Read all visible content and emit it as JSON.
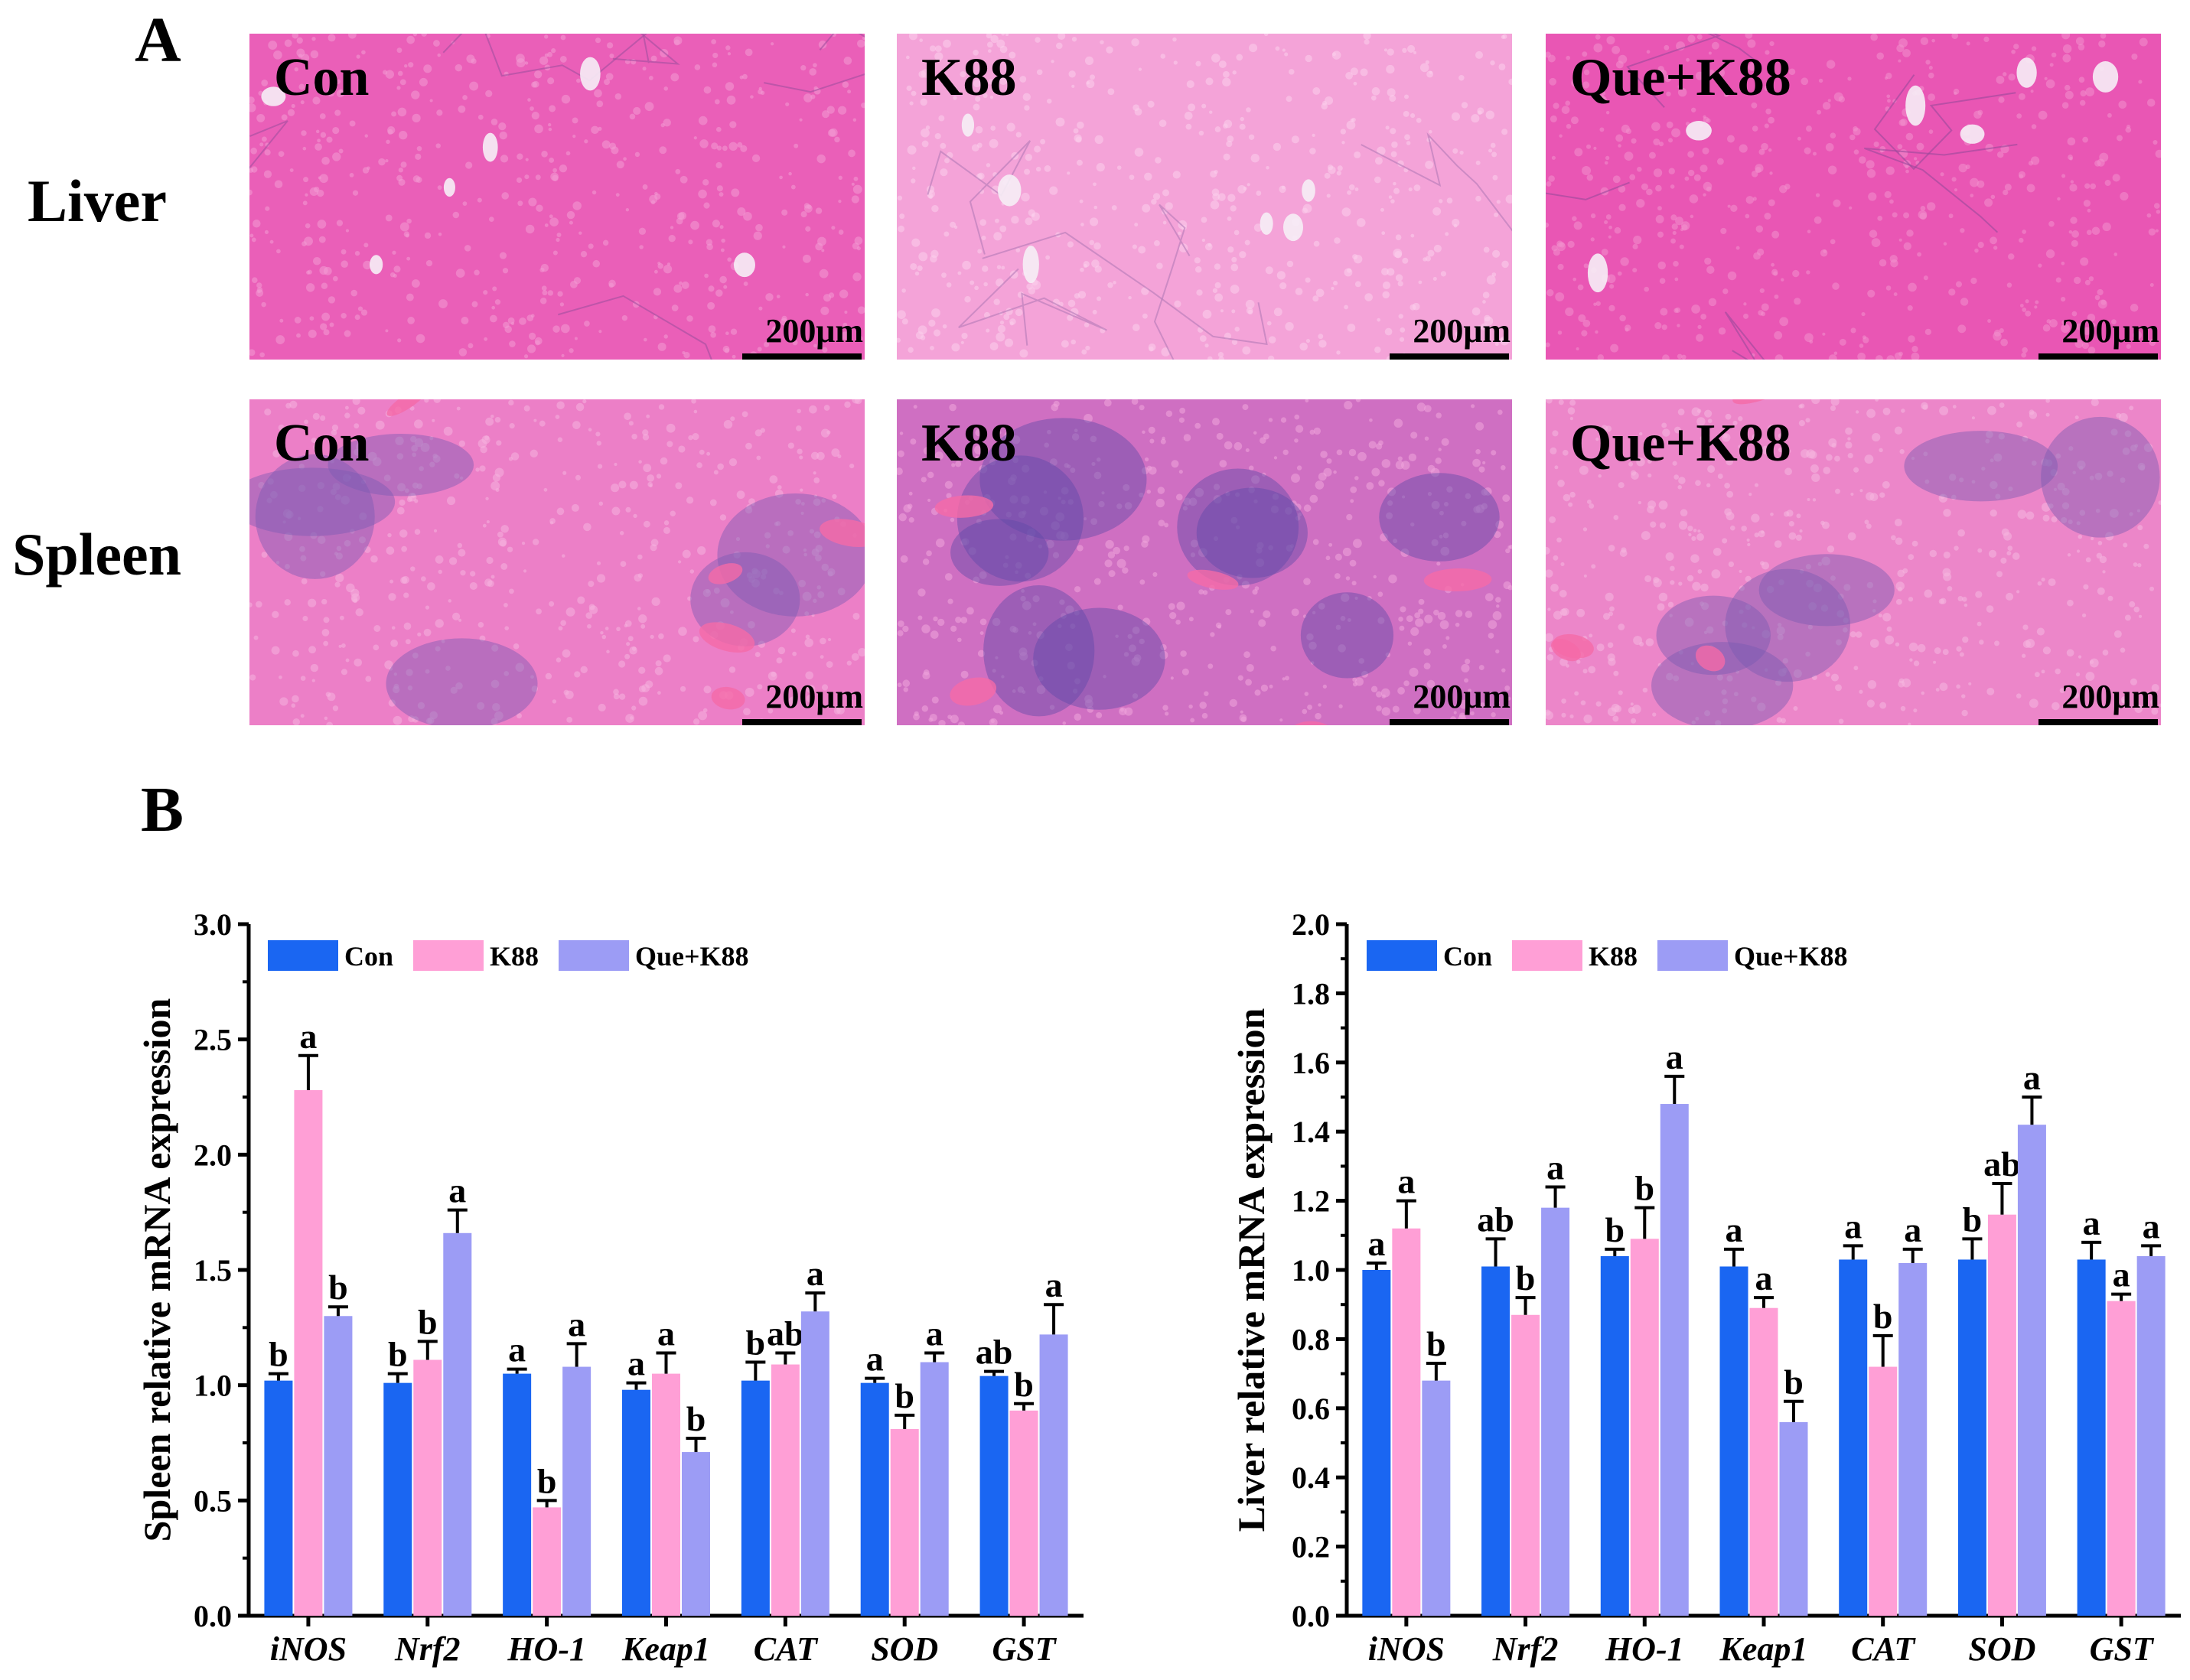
{
  "panel_a": {
    "letter": "A",
    "rows": [
      {
        "label": "Liver",
        "tiles": [
          {
            "group": "Con",
            "scale": "200μm",
            "tone": "liver-con"
          },
          {
            "group": "K88",
            "scale": "200μm",
            "tone": "liver-k88"
          },
          {
            "group": "Que+K88",
            "scale": "200μm",
            "tone": "liver-que"
          }
        ]
      },
      {
        "label": "Spleen",
        "tiles": [
          {
            "group": "Con",
            "scale": "200μm",
            "tone": "spleen-con"
          },
          {
            "group": "K88",
            "scale": "200μm",
            "tone": "spleen-k88"
          },
          {
            "group": "Que+K88",
            "scale": "200μm",
            "tone": "spleen-que"
          }
        ]
      }
    ]
  },
  "panel_b": {
    "letter": "B"
  },
  "chart_data": [
    {
      "type": "bar",
      "title": "",
      "xlabel": "",
      "ylabel": "Spleen relative mRNA expression",
      "ylim": [
        0,
        3.0
      ],
      "yticks": [
        "0.0",
        "0.5",
        "1.0",
        "1.5",
        "2.0",
        "2.5",
        "3.0"
      ],
      "ytick_step": 0.5,
      "categories": [
        "iNOS",
        "Nrf2",
        "HO-1",
        "Keap1",
        "CAT",
        "SOD",
        "GST"
      ],
      "legend_position": "top-left",
      "series": [
        {
          "name": "Con",
          "color": "#1a66f2",
          "values": [
            1.02,
            1.01,
            1.05,
            0.98,
            1.02,
            1.01,
            1.04
          ],
          "errors": [
            0.03,
            0.04,
            0.02,
            0.03,
            0.08,
            0.02,
            0.02
          ],
          "letters": [
            "b",
            "b",
            "a",
            "a",
            "b",
            "a",
            "ab"
          ]
        },
        {
          "name": "K88",
          "color": "#ff9fd6",
          "values": [
            2.28,
            1.11,
            0.47,
            1.05,
            1.09,
            0.81,
            0.89
          ],
          "errors": [
            0.15,
            0.08,
            0.03,
            0.09,
            0.05,
            0.06,
            0.03
          ],
          "letters": [
            "a",
            "b",
            "b",
            "a",
            "ab",
            "b",
            "b"
          ]
        },
        {
          "name": "Que+K88",
          "color": "#9c9cf5",
          "values": [
            1.3,
            1.66,
            1.08,
            0.71,
            1.32,
            1.1,
            1.22
          ],
          "errors": [
            0.04,
            0.1,
            0.1,
            0.06,
            0.08,
            0.04,
            0.13
          ],
          "letters": [
            "b",
            "a",
            "a",
            "b",
            "a",
            "a",
            "a"
          ]
        }
      ]
    },
    {
      "type": "bar",
      "title": "",
      "xlabel": "",
      "ylabel": "Liver relative mRNA expression",
      "ylim": [
        0,
        2.0
      ],
      "yticks": [
        "0.0",
        "0.2",
        "0.4",
        "0.6",
        "0.8",
        "1.0",
        "1.2",
        "1.4",
        "1.6",
        "1.8",
        "2.0"
      ],
      "ytick_step": 0.2,
      "categories": [
        "iNOS",
        "Nrf2",
        "HO-1",
        "Keap1",
        "CAT",
        "SOD",
        "GST"
      ],
      "legend_position": "top-left",
      "series": [
        {
          "name": "Con",
          "color": "#1a66f2",
          "values": [
            1.0,
            1.01,
            1.04,
            1.01,
            1.03,
            1.03,
            1.03
          ],
          "errors": [
            0.02,
            0.08,
            0.02,
            0.05,
            0.04,
            0.06,
            0.05
          ],
          "letters": [
            "a",
            "ab",
            "b",
            "a",
            "a",
            "b",
            "a"
          ]
        },
        {
          "name": "K88",
          "color": "#ff9fd6",
          "values": [
            1.12,
            0.87,
            1.09,
            0.89,
            0.72,
            1.16,
            0.91
          ],
          "errors": [
            0.08,
            0.05,
            0.09,
            0.03,
            0.09,
            0.09,
            0.02
          ],
          "letters": [
            "a",
            "b",
            "b",
            "a",
            "b",
            "ab",
            "a"
          ]
        },
        {
          "name": "Que+K88",
          "color": "#9c9cf5",
          "values": [
            0.68,
            1.18,
            1.48,
            0.56,
            1.02,
            1.42,
            1.04
          ],
          "errors": [
            0.05,
            0.06,
            0.08,
            0.06,
            0.04,
            0.08,
            0.03
          ],
          "letters": [
            "b",
            "a",
            "a",
            "b",
            "a",
            "a",
            "a"
          ]
        }
      ]
    }
  ]
}
